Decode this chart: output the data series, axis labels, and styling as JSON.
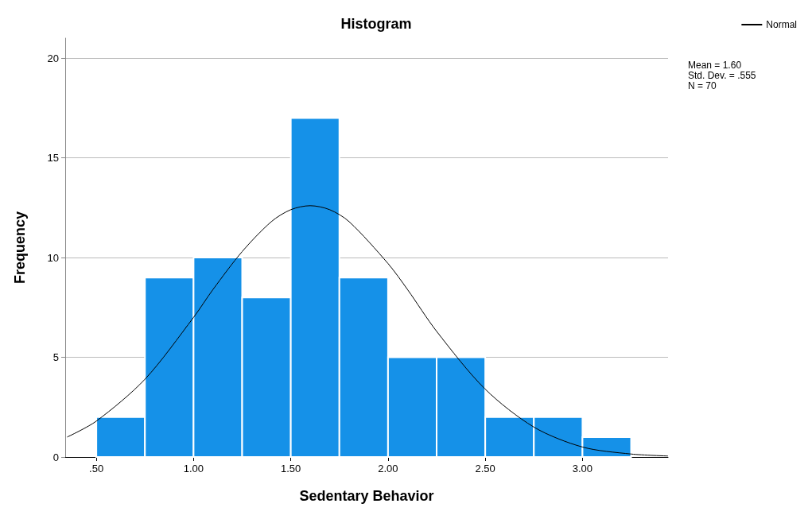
{
  "chart_data": {
    "type": "histogram",
    "title": "Histogram",
    "xlabel": "Sedentary Behavior",
    "ylabel": "Frequency",
    "bins": [
      0.5,
      0.75,
      1.0,
      1.25,
      1.5,
      1.75,
      2.0,
      2.25,
      2.5,
      2.75,
      3.0,
      3.25
    ],
    "series": [
      {
        "color": "#1591e8",
        "values": [
          2,
          9,
          10,
          8,
          17,
          9,
          5,
          5,
          2,
          2,
          1
        ]
      },
      {
        "type": "line",
        "name": "Normal",
        "color": "#000000",
        "x": [
          0.35,
          0.5,
          0.75,
          1.0,
          1.1,
          1.25,
          1.4,
          1.5,
          1.6,
          1.7,
          1.8,
          2.0,
          2.1,
          2.25,
          2.5,
          2.75,
          3.0,
          3.25,
          3.44
        ],
        "values": [
          1.0,
          1.8,
          3.9,
          7.0,
          8.4,
          10.3,
          11.8,
          12.4,
          12.6,
          12.4,
          11.8,
          9.7,
          8.4,
          6.3,
          3.4,
          1.5,
          0.5,
          0.15,
          0.05
        ]
      }
    ],
    "xlim": [
      0.34,
      3.44
    ],
    "xticks": [
      {
        "value": 0.5,
        "label": ".50"
      },
      {
        "value": 1.0,
        "label": "1.00"
      },
      {
        "value": 1.5,
        "label": "1.50"
      },
      {
        "value": 2.0,
        "label": "2.00"
      },
      {
        "value": 2.5,
        "label": "2.50"
      },
      {
        "value": 3.0,
        "label": "3.00"
      }
    ],
    "ylim": [
      0,
      21
    ],
    "yticks": [
      0,
      5,
      10,
      15,
      20
    ],
    "grid": "y",
    "legend": "top right",
    "marker": "none",
    "line_style": "solid",
    "annotations": [
      "Mean = 1.60",
      "Std. Dev. = .555",
      "N = 70"
    ]
  }
}
